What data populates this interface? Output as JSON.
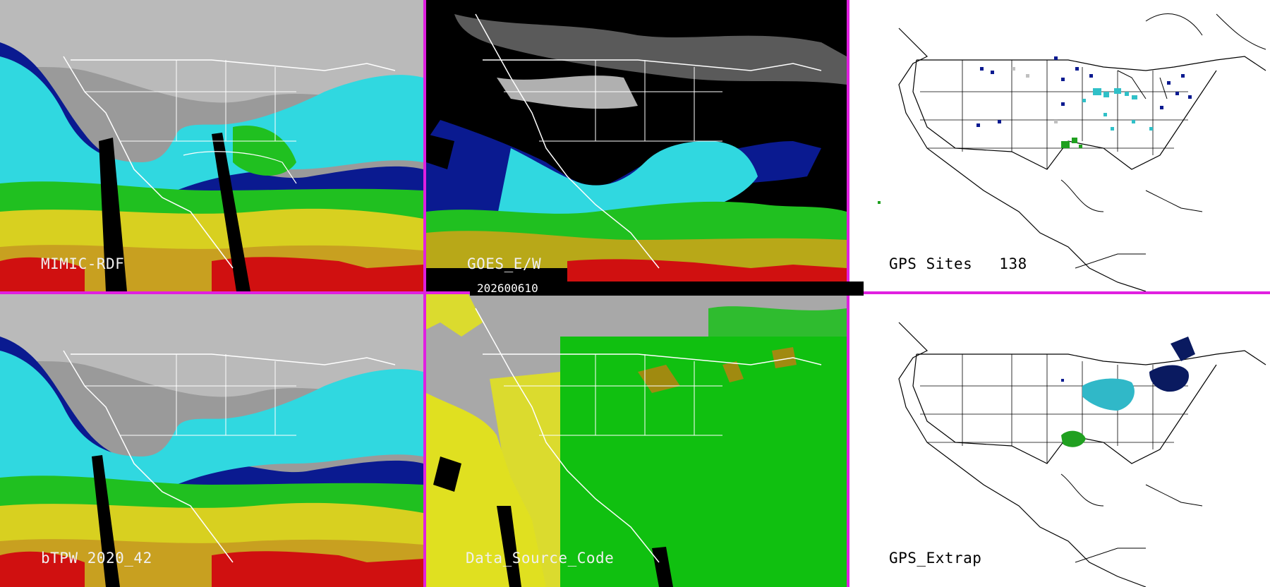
{
  "panels": {
    "mimic": {
      "label": "MIMIC-RDF"
    },
    "goes": {
      "label": "GOES_E/W"
    },
    "gps_sites": {
      "label": "GPS Sites",
      "count": "138"
    },
    "btpw": {
      "label": "bTPW 2020_42"
    },
    "data_source": {
      "label": "Data_Source_Code"
    },
    "gps_extrap": {
      "label": "GPS_Extrap"
    }
  },
  "date_stamp": "202600610",
  "colors": {
    "separator": "#e020e0",
    "tpw_dry_grey": "#b0b0b0",
    "tpw_blue": "#0a1a90",
    "tpw_cyan": "#30d8e0",
    "tpw_green": "#20c020",
    "tpw_yellow": "#d8d020",
    "tpw_red": "#d01010",
    "source_yellow": "#e0e020",
    "source_green": "#10c010",
    "source_olive": "#a08a10"
  }
}
